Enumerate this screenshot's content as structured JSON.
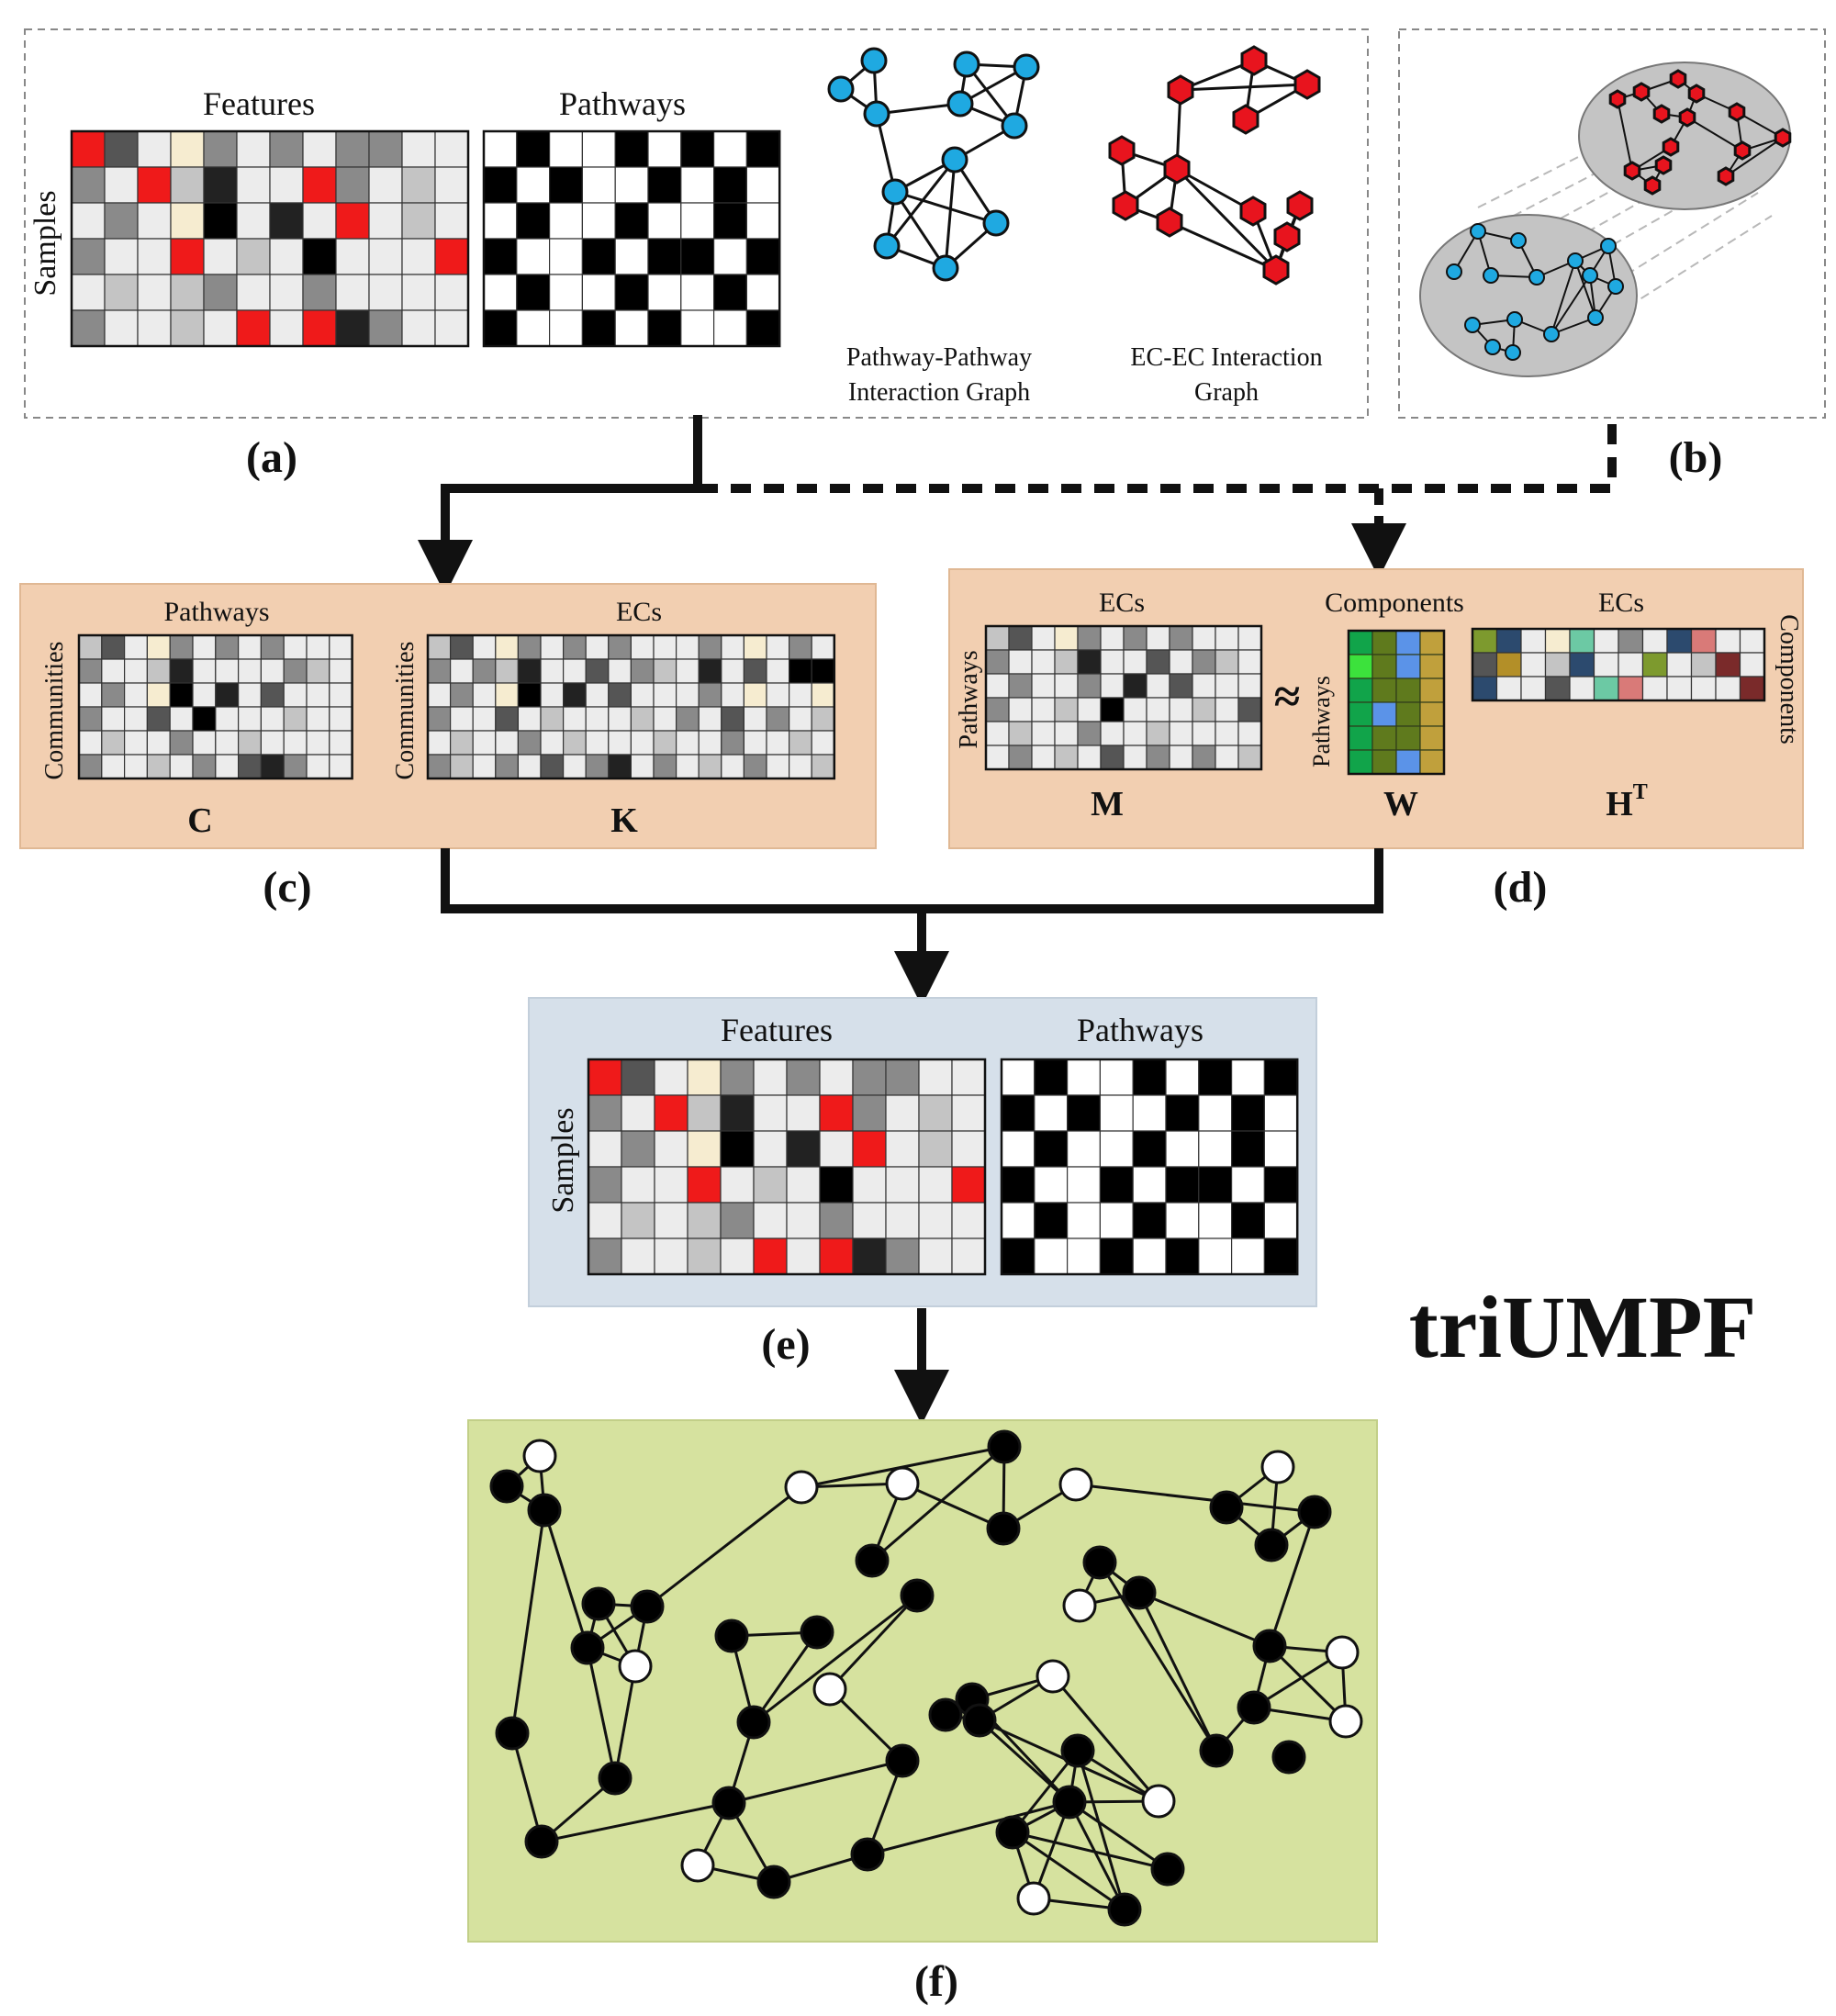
{
  "title": "triUMPF",
  "panels": {
    "a": {
      "letter": "(a)",
      "features_label": "Features",
      "pathways_label": "Pathways",
      "samples_label": "Samples",
      "pp_graph_caption": [
        "Pathway-Pathway",
        "Interaction Graph"
      ],
      "ec_graph_caption": [
        "EC-EC Interaction",
        "Graph"
      ]
    },
    "b": {
      "letter": "(b)"
    },
    "c": {
      "letter": "(c)",
      "pathways_label": "Pathways",
      "ecs_label": "ECs",
      "communities_label": "Communities",
      "c_label": "C",
      "k_label": "K"
    },
    "d": {
      "letter": "(d)",
      "ecs_label": "ECs",
      "components_label": "Components",
      "pathways_label": "Pathways",
      "approx_symbol": "≈",
      "m_label": "M",
      "w_label": "W",
      "h_label": "H",
      "h_sup": "T"
    },
    "e": {
      "letter": "(e)",
      "features_label": "Features",
      "pathways_label": "Pathways",
      "samples_label": "Samples"
    },
    "f": {
      "letter": "(f)"
    }
  },
  "colors": {
    "panel_cd_bg": "#f2cfb1",
    "panel_e_bg": "#d6e0ea",
    "panel_f_bg": "#d6e29f",
    "pathway_node": "#1fa9e1",
    "ec_node": "#e8141e",
    "highlight_red": "#ef1a1a",
    "cream": "#f6ecd0"
  }
}
